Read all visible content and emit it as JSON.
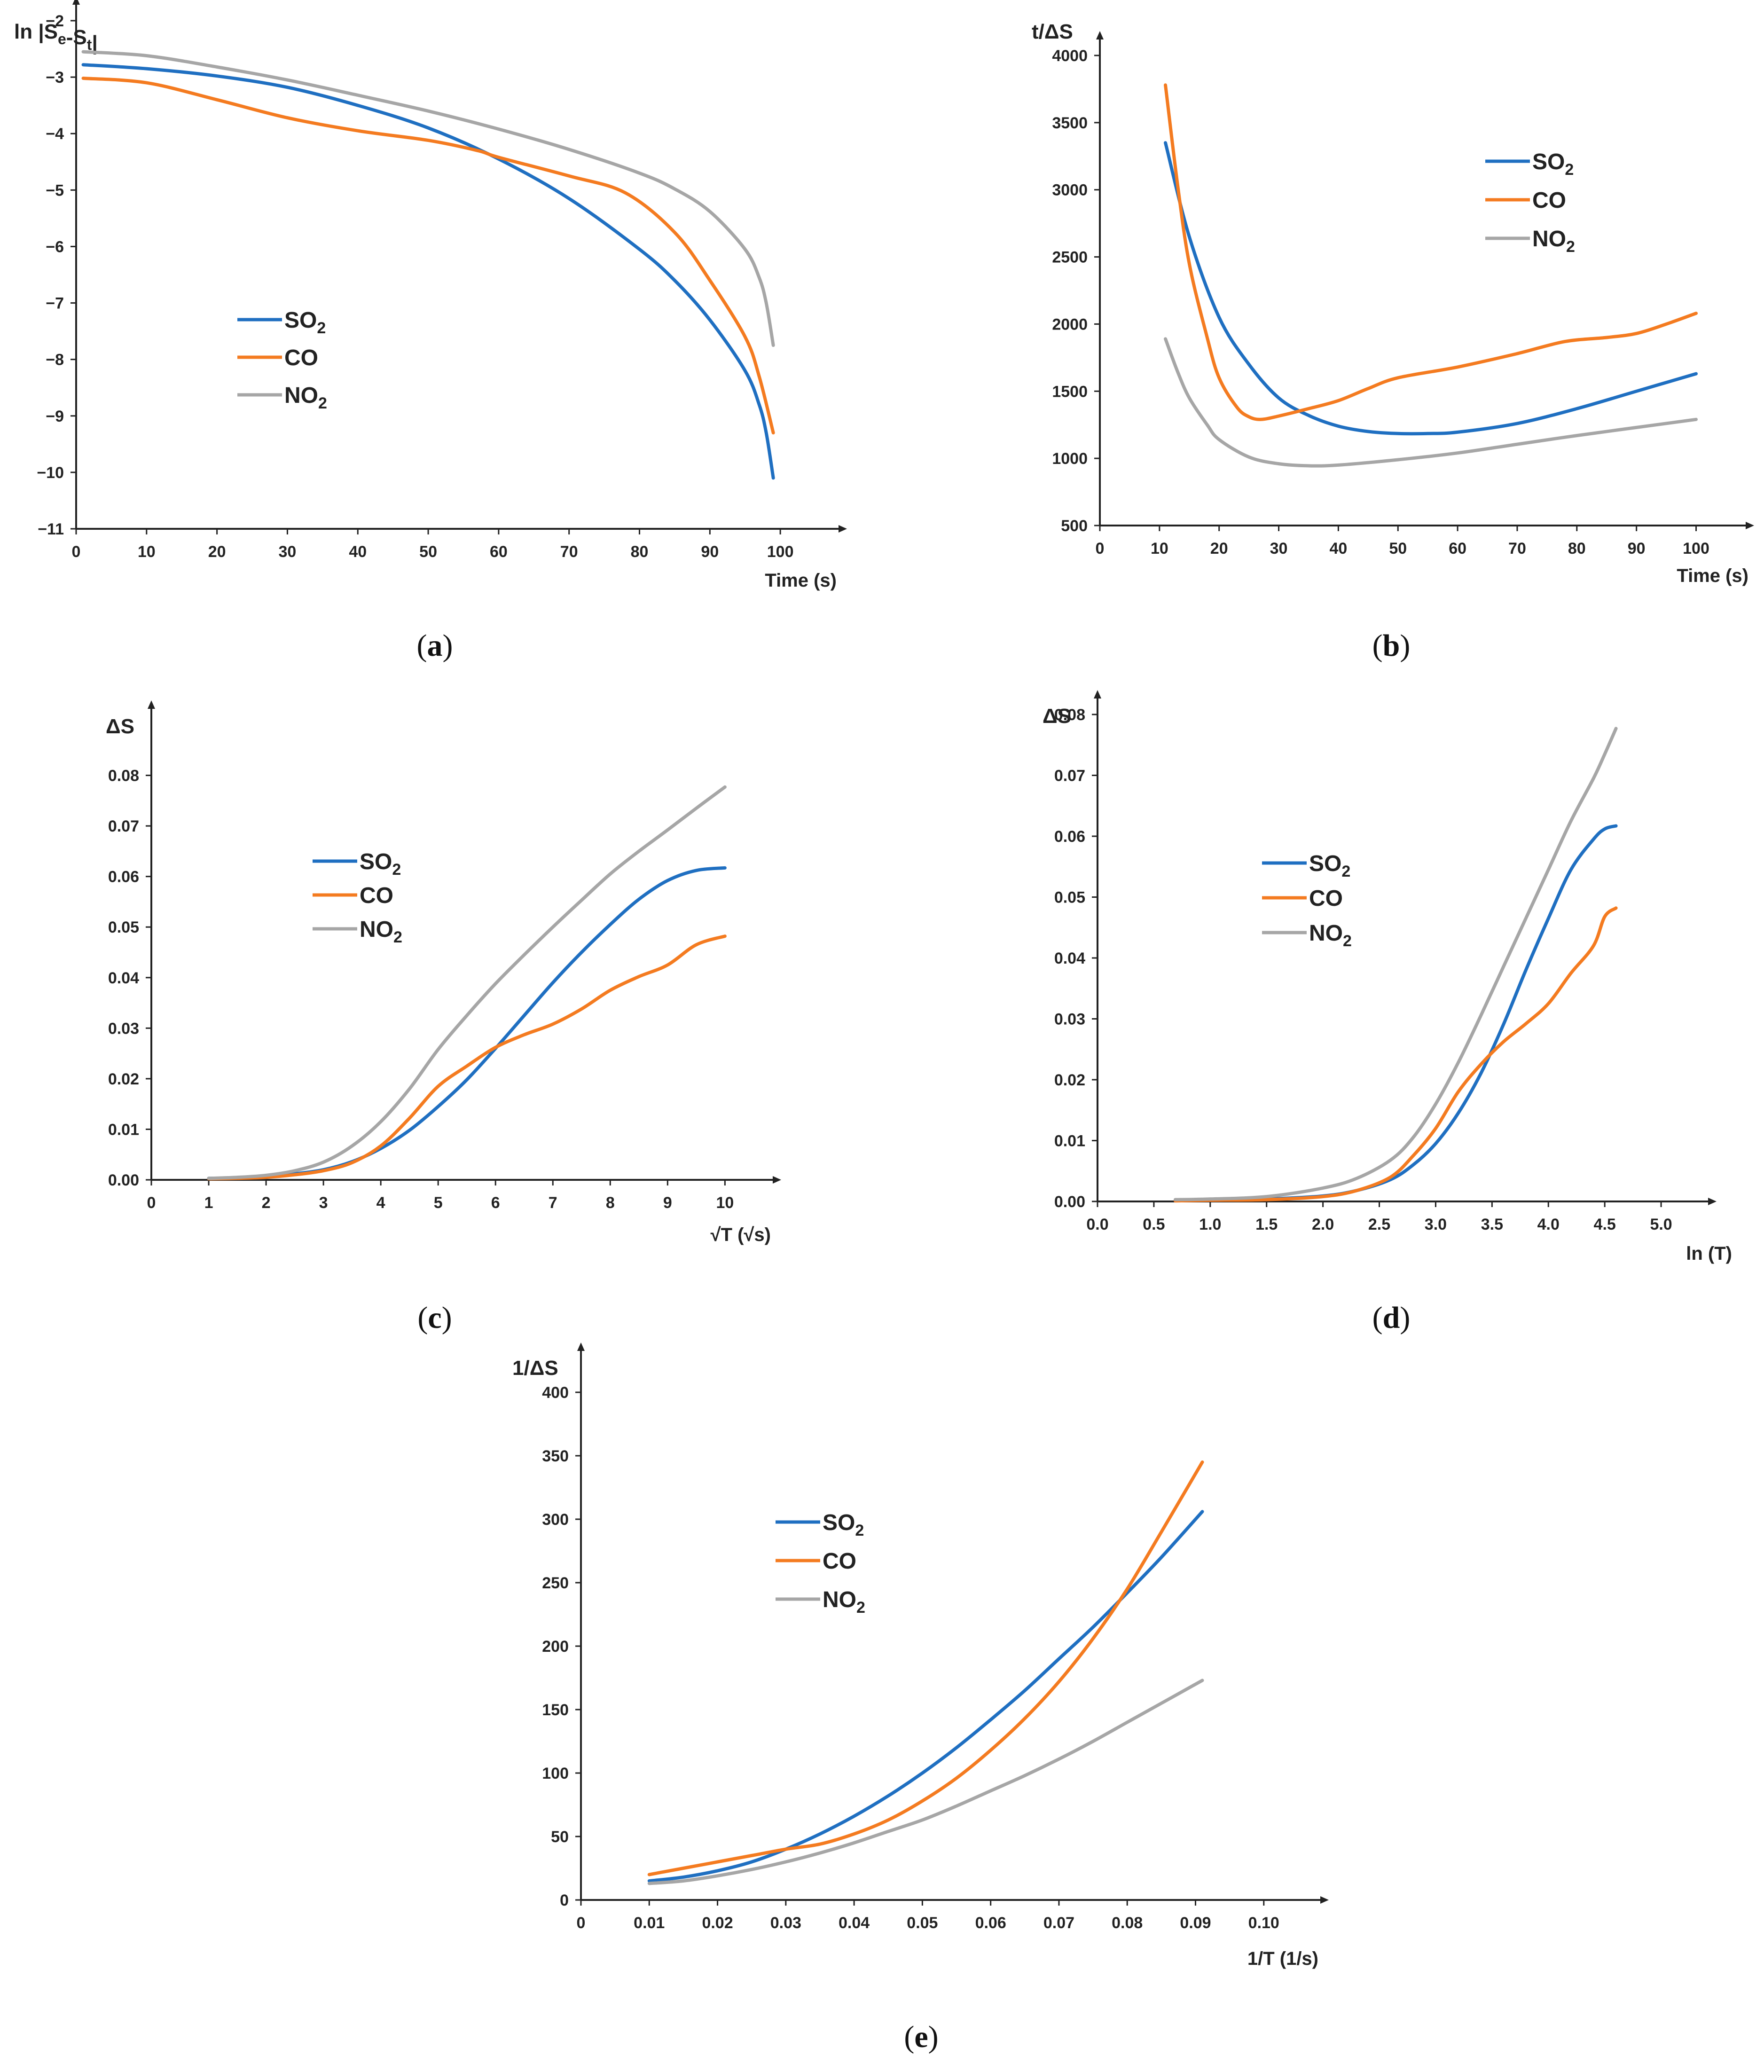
{
  "colors": {
    "SO2": "#1f6fc1",
    "CO": "#f47b20",
    "NO2": "#a6a6a6",
    "axis": "#222222"
  },
  "chart_data": [
    {
      "id": "a",
      "type": "line",
      "panel_label": "(a)",
      "ylabel": "ln |Se-St|",
      "xlabel": "Time (s)",
      "xlim": [
        0,
        108
      ],
      "ylim": [
        -11,
        -2
      ],
      "xticks": [
        "0",
        "10",
        "20",
        "30",
        "40",
        "50",
        "60",
        "70",
        "80",
        "90",
        "100"
      ],
      "yticks": [
        "−11",
        "−10",
        "−9",
        "−8",
        "−7",
        "−6",
        "−5",
        "−4",
        "−3",
        "−2"
      ],
      "legend": "center-left",
      "series": [
        {
          "name": "SO2",
          "color": "#1f6fc1",
          "x": [
            1,
            10,
            20,
            30,
            40,
            50,
            60,
            70,
            80,
            85,
            90,
            95,
            97,
            98,
            99
          ],
          "y": [
            -2.78,
            -2.85,
            -2.98,
            -3.18,
            -3.5,
            -3.9,
            -4.45,
            -5.15,
            -6.05,
            -6.6,
            -7.3,
            -8.2,
            -8.8,
            -9.3,
            -10.1
          ]
        },
        {
          "name": "CO",
          "color": "#f47b20",
          "x": [
            1,
            10,
            20,
            30,
            40,
            50,
            57,
            60,
            70,
            78,
            85,
            90,
            95,
            97,
            99
          ],
          "y": [
            -3.02,
            -3.1,
            -3.4,
            -3.72,
            -3.95,
            -4.12,
            -4.3,
            -4.42,
            -4.75,
            -5.05,
            -5.75,
            -6.6,
            -7.6,
            -8.3,
            -9.3
          ]
        },
        {
          "name": "NO2",
          "color": "#a6a6a6",
          "x": [
            1,
            10,
            20,
            30,
            40,
            50,
            60,
            70,
            80,
            85,
            90,
            95,
            97,
            98,
            99
          ],
          "y": [
            -2.55,
            -2.62,
            -2.82,
            -3.05,
            -3.32,
            -3.6,
            -3.92,
            -4.28,
            -4.7,
            -4.98,
            -5.38,
            -6.05,
            -6.55,
            -7.0,
            -7.75
          ]
        }
      ]
    },
    {
      "id": "b",
      "type": "line",
      "panel_label": "(b)",
      "ylabel": "t/ΔS",
      "xlabel": "Time (s)",
      "xlim": [
        0,
        108
      ],
      "ylim": [
        500,
        4000
      ],
      "xticks": [
        "0",
        "10",
        "20",
        "30",
        "40",
        "50",
        "60",
        "70",
        "80",
        "90",
        "100"
      ],
      "yticks": [
        "500",
        "1000",
        "1500",
        "2000",
        "2500",
        "3000",
        "3500",
        "4000"
      ],
      "legend": "top-right",
      "series": [
        {
          "name": "SO2",
          "color": "#1f6fc1",
          "x": [
            11,
            15,
            20,
            25,
            30,
            35,
            40,
            45,
            50,
            55,
            60,
            70,
            80,
            90,
            100
          ],
          "y": [
            3350,
            2650,
            2050,
            1700,
            1450,
            1320,
            1240,
            1200,
            1185,
            1185,
            1195,
            1260,
            1370,
            1500,
            1630
          ]
        },
        {
          "name": "CO",
          "color": "#f47b20",
          "x": [
            11,
            13,
            15,
            18,
            20,
            23,
            25,
            27,
            30,
            35,
            40,
            45,
            50,
            60,
            70,
            78,
            85,
            90,
            95,
            100
          ],
          "y": [
            3780,
            3050,
            2450,
            1900,
            1600,
            1380,
            1310,
            1290,
            1315,
            1370,
            1430,
            1520,
            1600,
            1680,
            1780,
            1870,
            1900,
            1930,
            2000,
            2080
          ]
        },
        {
          "name": "NO2",
          "color": "#a6a6a6",
          "x": [
            11,
            13,
            15,
            18,
            20,
            25,
            30,
            35,
            40,
            50,
            60,
            70,
            80,
            90,
            100
          ],
          "y": [
            1890,
            1650,
            1450,
            1250,
            1140,
            1010,
            960,
            945,
            950,
            990,
            1040,
            1105,
            1170,
            1230,
            1290
          ]
        }
      ]
    },
    {
      "id": "c",
      "type": "line",
      "panel_label": "(c)",
      "ylabel": "ΔS",
      "xlabel": "√T (√s)",
      "xlim": [
        0,
        10.8
      ],
      "ylim": [
        0,
        0.09
      ],
      "xticks": [
        "0",
        "1",
        "2",
        "3",
        "4",
        "5",
        "6",
        "7",
        "8",
        "9",
        "10"
      ],
      "yticks": [
        "0.00",
        "0.01",
        "0.02",
        "0.03",
        "0.04",
        "0.05",
        "0.06",
        "0.07",
        "0.08"
      ],
      "legend": "top-center",
      "series": [
        {
          "name": "SO2",
          "color": "#1f6fc1",
          "x": [
            1,
            1.5,
            2,
            2.5,
            3,
            3.5,
            4,
            4.5,
            5,
            5.5,
            6,
            6.5,
            7,
            7.5,
            8,
            8.5,
            9,
            9.5,
            10
          ],
          "y": [
            0.0003,
            0.0004,
            0.0007,
            0.0012,
            0.002,
            0.0036,
            0.0062,
            0.0098,
            0.0145,
            0.0198,
            0.026,
            0.0325,
            0.039,
            0.045,
            0.0505,
            0.0555,
            0.0592,
            0.0612,
            0.0617
          ]
        },
        {
          "name": "CO",
          "color": "#f47b20",
          "x": [
            1,
            1.5,
            2,
            2.5,
            3,
            3.5,
            4,
            4.5,
            5,
            5.5,
            6,
            6.5,
            7,
            7.5,
            8,
            8.5,
            9,
            9.5,
            10
          ],
          "y": [
            0.0002,
            0.0003,
            0.0005,
            0.001,
            0.0018,
            0.0034,
            0.0067,
            0.0122,
            0.0185,
            0.0225,
            0.0262,
            0.0287,
            0.0308,
            0.0338,
            0.0375,
            0.0402,
            0.0425,
            0.0465,
            0.0482
          ]
        },
        {
          "name": "NO2",
          "color": "#a6a6a6",
          "x": [
            1,
            1.5,
            2,
            2.5,
            3,
            3.5,
            4,
            4.5,
            5,
            5.5,
            6,
            6.5,
            7,
            7.5,
            8,
            8.5,
            9,
            9.5,
            10
          ],
          "y": [
            0.0003,
            0.0005,
            0.0009,
            0.0018,
            0.0035,
            0.0067,
            0.0115,
            0.018,
            0.0258,
            0.0325,
            0.0388,
            0.0445,
            0.05,
            0.0553,
            0.0605,
            0.065,
            0.0692,
            0.0735,
            0.0777
          ]
        }
      ]
    },
    {
      "id": "d",
      "type": "line",
      "panel_label": "(d)",
      "ylabel": "ΔS",
      "xlabel": "ln (T)",
      "xlim": [
        0,
        5.4
      ],
      "ylim": [
        0,
        0.08
      ],
      "xticks": [
        "0.0",
        "0.5",
        "1.0",
        "1.5",
        "2.0",
        "2.5",
        "3.0",
        "3.5",
        "4.0",
        "4.5",
        "5.0"
      ],
      "yticks": [
        "0.00",
        "0.01",
        "0.02",
        "0.03",
        "0.04",
        "0.05",
        "0.06",
        "0.07",
        "0.08"
      ],
      "legend": "top-center",
      "series": [
        {
          "name": "SO2",
          "color": "#1f6fc1",
          "x": [
            0.69,
            1,
            1.5,
            2,
            2.3,
            2.6,
            2.8,
            3.0,
            3.2,
            3.4,
            3.6,
            3.8,
            4.0,
            4.2,
            4.4,
            4.5,
            4.6
          ],
          "y": [
            0.0002,
            0.0002,
            0.0004,
            0.0009,
            0.0018,
            0.0036,
            0.006,
            0.0095,
            0.0145,
            0.021,
            0.029,
            0.038,
            0.0465,
            0.0545,
            0.0595,
            0.0612,
            0.0617
          ]
        },
        {
          "name": "CO",
          "color": "#f47b20",
          "x": [
            0.69,
            1,
            1.5,
            2,
            2.3,
            2.6,
            2.8,
            3.0,
            3.2,
            3.4,
            3.6,
            3.8,
            4.0,
            4.2,
            4.4,
            4.5,
            4.6
          ],
          "y": [
            0.0001,
            0.0002,
            0.0003,
            0.0008,
            0.0018,
            0.004,
            0.0075,
            0.012,
            0.018,
            0.0225,
            0.0262,
            0.0292,
            0.0325,
            0.0375,
            0.042,
            0.0468,
            0.0482
          ]
        },
        {
          "name": "NO2",
          "color": "#a6a6a6",
          "x": [
            0.69,
            1,
            1.5,
            2,
            2.3,
            2.6,
            2.8,
            3.0,
            3.2,
            3.4,
            3.6,
            3.8,
            4.0,
            4.2,
            4.4,
            4.5,
            4.6
          ],
          "y": [
            0.0003,
            0.0004,
            0.0008,
            0.0022,
            0.0038,
            0.0068,
            0.0105,
            0.016,
            0.0228,
            0.0305,
            0.0385,
            0.0465,
            0.0545,
            0.0625,
            0.0695,
            0.0735,
            0.0777
          ]
        }
      ]
    },
    {
      "id": "e",
      "type": "line",
      "panel_label": "(e)",
      "ylabel": "1/ΔS",
      "xlabel": "1/T (1/s)",
      "xlim": [
        0,
        0.108
      ],
      "ylim": [
        0,
        420
      ],
      "xticks": [
        "0",
        "0.01",
        "0.02",
        "0.03",
        "0.04",
        "0.05",
        "0.06",
        "0.07",
        "0.08",
        "0.09",
        "0.10"
      ],
      "yticks": [
        "0",
        "50",
        "100",
        "150",
        "200",
        "250",
        "300",
        "350",
        "400"
      ],
      "legend": "top-center",
      "series": [
        {
          "name": "SO2",
          "color": "#1f6fc1",
          "x": [
            0.01,
            0.015,
            0.02,
            0.025,
            0.03,
            0.035,
            0.04,
            0.045,
            0.05,
            0.055,
            0.06,
            0.065,
            0.07,
            0.075,
            0.08,
            0.085,
            0.091
          ],
          "y": [
            15,
            18,
            23,
            30,
            40,
            52,
            66,
            82,
            100,
            120,
            142,
            165,
            190,
            215,
            242,
            270,
            306
          ]
        },
        {
          "name": "CO",
          "color": "#f47b20",
          "x": [
            0.01,
            0.012,
            0.015,
            0.02,
            0.025,
            0.03,
            0.035,
            0.04,
            0.045,
            0.05,
            0.055,
            0.06,
            0.065,
            0.07,
            0.075,
            0.08,
            0.085,
            0.091
          ],
          "y": [
            20,
            22,
            25,
            30,
            35,
            40,
            44,
            52,
            63,
            78,
            96,
            118,
            143,
            172,
            206,
            245,
            290,
            345
          ]
        },
        {
          "name": "NO2",
          "color": "#a6a6a6",
          "x": [
            0.01,
            0.015,
            0.02,
            0.025,
            0.03,
            0.035,
            0.04,
            0.045,
            0.05,
            0.055,
            0.06,
            0.065,
            0.07,
            0.075,
            0.08,
            0.085,
            0.091
          ],
          "y": [
            13,
            15,
            19,
            24,
            30,
            37,
            45,
            54,
            63,
            74,
            86,
            98,
            111,
            125,
            140,
            155,
            173
          ]
        }
      ]
    }
  ]
}
